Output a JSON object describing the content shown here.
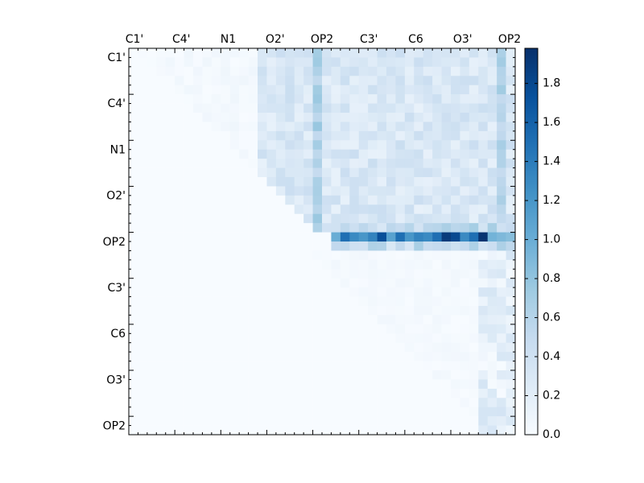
{
  "chart_data": {
    "type": "heatmap",
    "title": "",
    "xlabel": "",
    "ylabel": "",
    "x_tick_labels": [
      "C1'",
      "C4'",
      "N1",
      "O2'",
      "OP2",
      "C3'",
      "C6",
      "O3'",
      "OP2"
    ],
    "y_tick_labels": [
      "C1'",
      "C4'",
      "N1",
      "O2'",
      "OP2",
      "C3'",
      "C6",
      "O3'",
      "OP2"
    ],
    "grid_size": 42,
    "colormap": "Blues",
    "colormap_stops": [
      "#f7fbff",
      "#deebf7",
      "#c6dbef",
      "#9ecae1",
      "#6baed6",
      "#4292c6",
      "#2171b5",
      "#08519c",
      "#08306b"
    ],
    "vmin": 0.0,
    "vmax": 1.98,
    "colorbar_ticks": [
      "0.0",
      "0.2",
      "0.4",
      "0.6",
      "0.8",
      "1.0",
      "1.2",
      "1.4",
      "1.6",
      "1.8"
    ],
    "colorbar_tick_values": [
      0.0,
      0.2,
      0.4,
      0.6,
      0.8,
      1.0,
      1.2,
      1.4,
      1.6,
      1.8
    ],
    "strong_row": 20,
    "strong_row_values": [
      0,
      0,
      0,
      0,
      0,
      0,
      0,
      0,
      0,
      0,
      0,
      0,
      0,
      0,
      0,
      0,
      0,
      0,
      0,
      0,
      0,
      0,
      1.0,
      1.5,
      1.3,
      1.2,
      1.35,
      1.75,
      1.1,
      1.5,
      1.2,
      1.35,
      1.3,
      1.5,
      1.9,
      1.8,
      1.3,
      1.5,
      1.95,
      0.95,
      0.9,
      0.85
    ],
    "adjacent_row_value": 0.5,
    "upper_band_range": [
      0.15,
      0.45
    ],
    "upper_band_col_start": 14,
    "upper_band_row_end": 19,
    "bright_columns": [
      20,
      40
    ],
    "bright_column_value": 0.7,
    "lower_band_range": [
      0.0,
      0.35
    ],
    "lower_band_col_start": 38
  }
}
